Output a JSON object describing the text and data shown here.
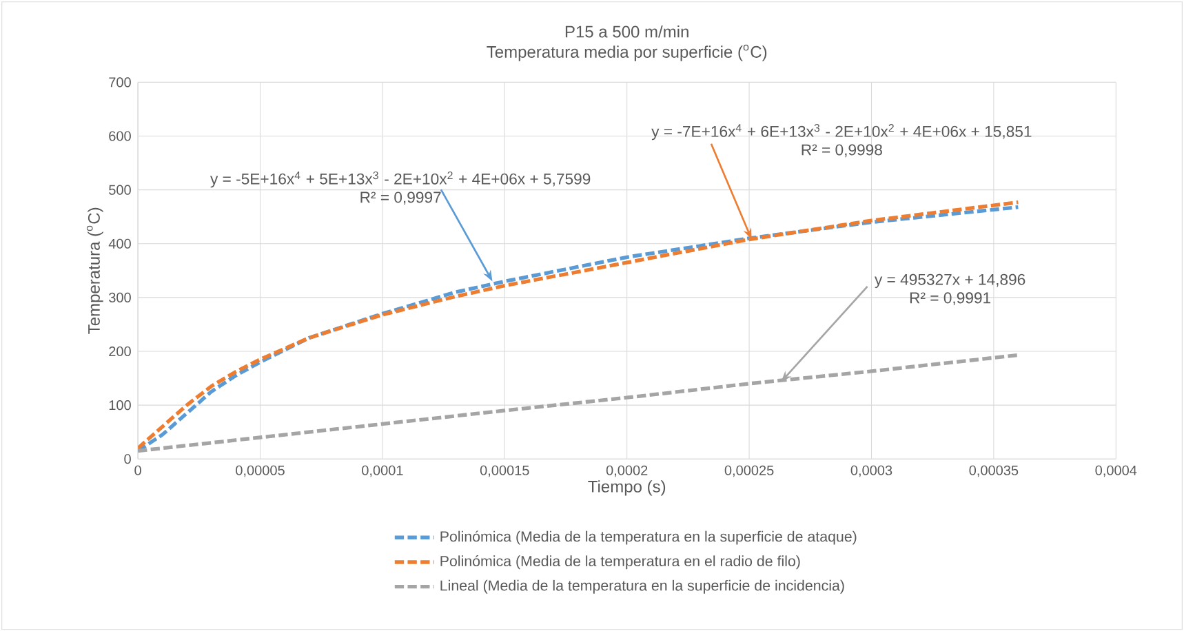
{
  "chart_data": {
    "type": "line",
    "title": "P15 a 500 m/min",
    "subtitle": "Temperatura media por superficie ($^{o}$C)",
    "xlabel": "Tiempo (s)",
    "ylabel": "Temperatura ($^{o}$C)",
    "xlim": [
      0,
      0.0004
    ],
    "ylim": [
      0,
      700
    ],
    "xticks": [
      0,
      {
        "value": 5e-05,
        "label": "0,00005"
      },
      {
        "value": 0.0001,
        "label": "0,0001"
      },
      {
        "value": 0.00015,
        "label": "0,00015"
      },
      {
        "value": 0.0002,
        "label": "0,0002"
      },
      {
        "value": 0.00025,
        "label": "0,00025"
      },
      {
        "value": 0.0003,
        "label": "0,0003"
      },
      {
        "value": 0.00035,
        "label": "0,00035"
      },
      {
        "value": 0.0004,
        "label": "0,0004"
      }
    ],
    "yticks": [
      0,
      100,
      200,
      300,
      400,
      500,
      600,
      700
    ],
    "grid": true,
    "legend": "bottom",
    "line_style": "dashed",
    "marker": "none",
    "x": [
      0,
      1e-05,
      2e-05,
      3e-05,
      4e-05,
      5e-05,
      7e-05,
      0.0001,
      0.00013,
      0.00015,
      0.0002,
      0.00025,
      0.0003,
      0.00036
    ],
    "series": [
      {
        "name": "Polinómica (Media de la temperatura en la superficie de ataque)",
        "color": "#5b9bd5",
        "values": [
          15,
          45,
          85,
          125,
          155,
          180,
          225,
          270,
          310,
          330,
          375,
          410,
          440,
          468
        ]
      },
      {
        "name": "Polinómica (Media de la temperatura en el radio de filo)",
        "color": "#ed7d31",
        "values": [
          20,
          60,
          100,
          135,
          162,
          185,
          225,
          268,
          302,
          322,
          365,
          408,
          443,
          477
        ]
      },
      {
        "name": "Lineal (Media de la temperatura en la superficie de incidencia)",
        "color": "#a5a5a5",
        "values": [
          15,
          20,
          25,
          30,
          35,
          40,
          50,
          65,
          80,
          90,
          114,
          140,
          163,
          193
        ]
      }
    ],
    "annotations": [
      {
        "text": "y = -5E+16x$^{4}$ + 5E+13x$^{3}$ - 2E+10x$^{2}$ + 4E+06x + 5,7599",
        "x": 0.000145,
        "y": 330
      },
      {
        "text": "y = -7E+16x$^{4}$ + 6E+13x$^{3}$ - 2E+10x$^{2}$ + 4E+06x + 15,851",
        "x": 0.000251,
        "y": 408
      },
      {
        "text": "y = 495327x + 14,896",
        "x": 0.000263,
        "y": 143
      },
      "R² = 0,9997",
      "R² = 0,9998",
      "R² = 0,9991"
    ]
  }
}
